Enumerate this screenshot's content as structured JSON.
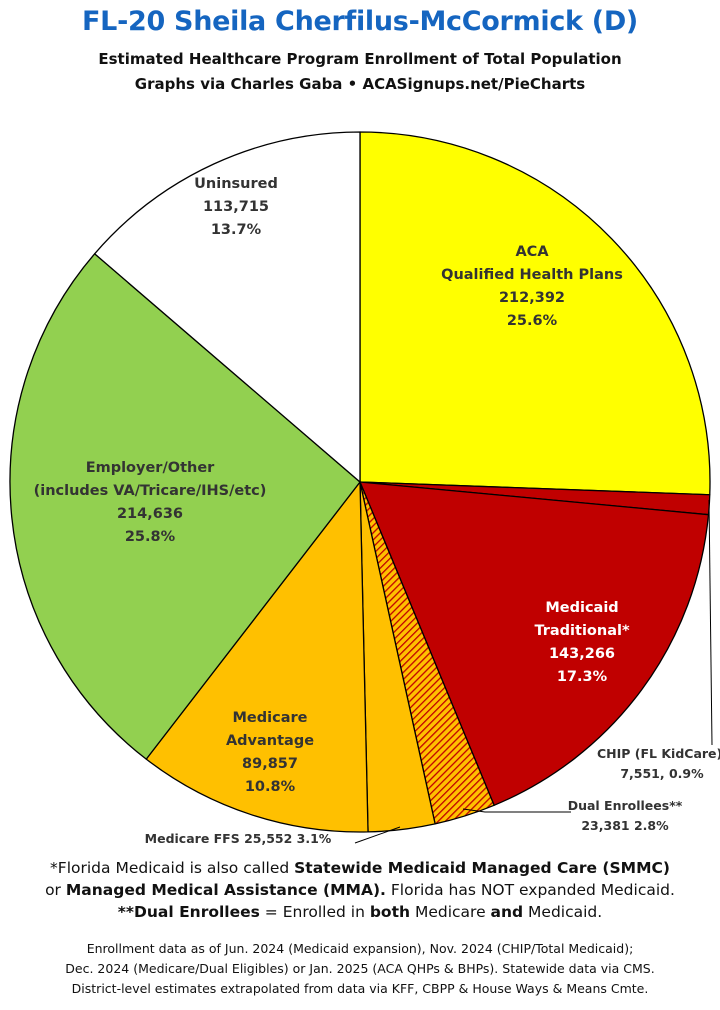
{
  "header": {
    "title": "FL-20 Sheila Cherfilus-McCormick (D)",
    "subtitle": "Estimated Healthcare Program Enrollment of Total Population",
    "credit": "Graphs via Charles Gaba   •   ACASignups.net/PieCharts"
  },
  "chart_data": {
    "type": "pie",
    "start_angle_deg": 0,
    "direction": "clockwise",
    "slices": [
      {
        "key": "aca",
        "label": "ACA Qualified Health Plans",
        "value": 212392,
        "percent": "25.6%",
        "color": "#ffff00",
        "pattern": "solid",
        "label_lines": [
          "ACA",
          "Qualified Health Plans",
          "212,392",
          "25.6%"
        ],
        "label_color": "#333333"
      },
      {
        "key": "chip",
        "label": "CHIP (FL KidCare)",
        "value": 7551,
        "percent": "0.9%",
        "color": "#c00000",
        "pattern": "solid",
        "label_lines": [
          "CHIP (FL KidCare),",
          "7,551, 0.9%"
        ],
        "label_color": "#333333"
      },
      {
        "key": "medicaid",
        "label": "Medicaid Traditional*",
        "value": 143266,
        "percent": "17.3%",
        "color": "#c00000",
        "pattern": "solid",
        "label_lines": [
          "Medicaid",
          "Traditional*",
          "143,266",
          "17.3%"
        ],
        "label_color": "#ffffff"
      },
      {
        "key": "dual",
        "label": "Dual Enrollees**",
        "value": 23381,
        "percent": "2.8%",
        "color": "#c00000",
        "pattern": "hatch",
        "label_lines": [
          "Dual Enrollees**",
          "23,381 2.8%"
        ],
        "label_color": "#333333"
      },
      {
        "key": "ffs",
        "label": "Medicare FFS",
        "value": 25552,
        "percent": "3.1%",
        "color": "#ffc000",
        "pattern": "solid",
        "label_lines": [
          "Medicare FFS 25,552 3.1%"
        ],
        "label_color": "#333333"
      },
      {
        "key": "ma",
        "label": "Medicare Advantage",
        "value": 89857,
        "percent": "10.8%",
        "color": "#ffc000",
        "pattern": "solid",
        "label_lines": [
          "Medicare",
          "Advantage",
          "89,857",
          "10.8%"
        ],
        "label_color": "#333333"
      },
      {
        "key": "employer",
        "label": "Employer/Other (includes VA/Tricare/IHS/etc)",
        "value": 214636,
        "percent": "25.8%",
        "color": "#92d050",
        "pattern": "solid",
        "label_lines": [
          "Employer/Other",
          "(includes VA/Tricare/IHS/etc)",
          "214,636",
          "25.8%"
        ],
        "label_color": "#333333"
      },
      {
        "key": "uninsured",
        "label": "Uninsured",
        "value": 113715,
        "percent": "13.7%",
        "color": "#ffffff",
        "pattern": "solid",
        "label_lines": [
          "Uninsured",
          "113,715",
          "13.7%"
        ],
        "label_color": "#333333"
      }
    ]
  },
  "notes": {
    "line1_a": "*Florida Medicaid is also called ",
    "line1_b": "Statewide Medicaid Managed Care (SMMC)",
    "line2_a": "or ",
    "line2_b": "Managed Medical Assistance (MMA).",
    "line2_c": " Florida has NOT expanded Medicaid.",
    "line3_a": "**Dual Enrollees",
    "line3_b": " = Enrolled in ",
    "line3_c": "both",
    "line3_d": " Medicare ",
    "line3_e": "and",
    "line3_f": " Medicaid."
  },
  "sources": {
    "line1": "Enrollment data as of Jun. 2024 (Medicaid expansion), Nov. 2024 (CHIP/Total Medicaid);",
    "line2": "Dec. 2024 (Medicare/Dual Eligibles) or Jan. 2025 (ACA QHPs & BHPs). Statewide data via CMS.",
    "line3": "District-level estimates extrapolated from data via KFF, CBPP & House Ways & Means Cmte."
  }
}
